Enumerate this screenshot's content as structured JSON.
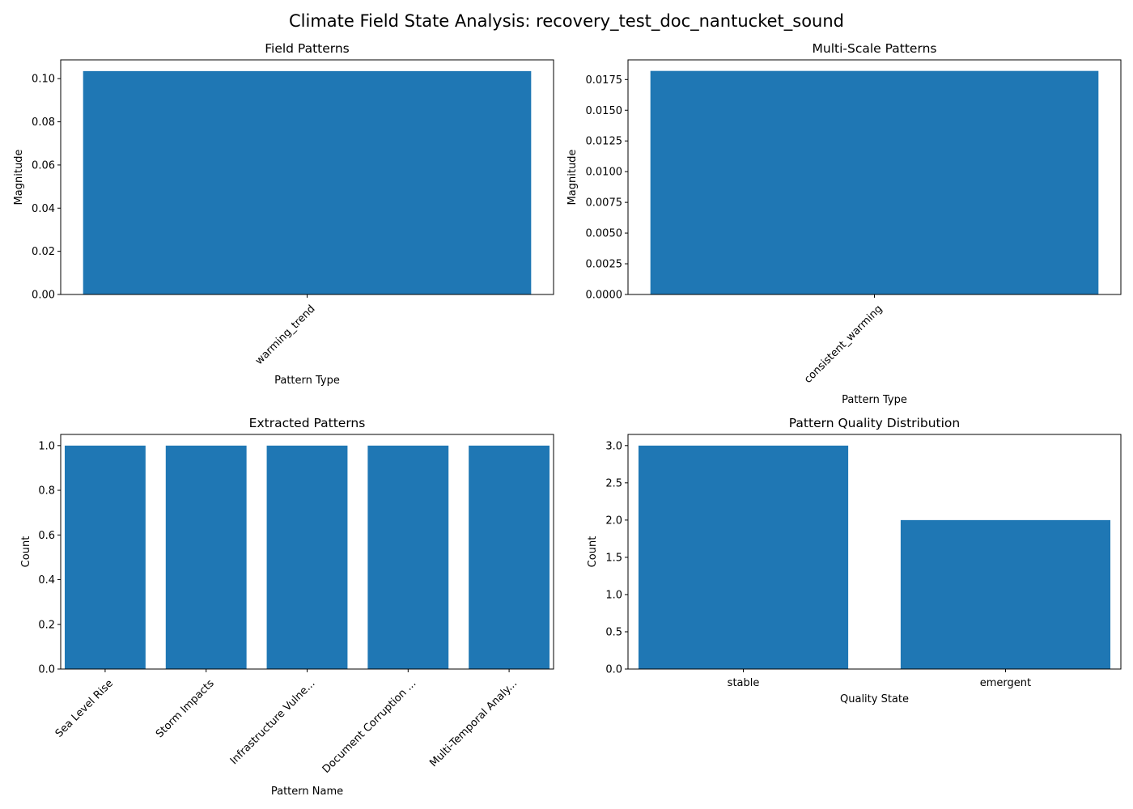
{
  "figure": {
    "title": "Climate Field State Analysis: recovery_test_doc_nantucket_sound",
    "bar_color": "#1f77b4"
  },
  "chart_data": [
    {
      "type": "bar",
      "title": "Field Patterns",
      "xlabel": "Pattern Type",
      "ylabel": "Magnitude",
      "categories": [
        "warming_trend"
      ],
      "values": [
        0.1035
      ],
      "ylim": [
        0,
        0.1087
      ],
      "yticks": [
        0.0,
        0.02,
        0.04,
        0.06,
        0.08,
        0.1
      ],
      "ytick_labels": [
        "0.00",
        "0.02",
        "0.04",
        "0.06",
        "0.08",
        "0.10"
      ],
      "xtick_rotation": 45,
      "grid": false
    },
    {
      "type": "bar",
      "title": "Multi-Scale Patterns",
      "xlabel": "Pattern Type",
      "ylabel": "Magnitude",
      "categories": [
        "consistent_warming"
      ],
      "values": [
        0.0182
      ],
      "ylim": [
        0,
        0.0191
      ],
      "yticks": [
        0.0,
        0.0025,
        0.005,
        0.0075,
        0.01,
        0.0125,
        0.015,
        0.0175
      ],
      "ytick_labels": [
        "0.0000",
        "0.0025",
        "0.0050",
        "0.0075",
        "0.0100",
        "0.0125",
        "0.0150",
        "0.0175"
      ],
      "xtick_rotation": 45,
      "grid": false
    },
    {
      "type": "bar",
      "title": "Extracted Patterns",
      "xlabel": "Pattern Name",
      "ylabel": "Count",
      "categories": [
        "Sea Level Rise",
        "Storm Impacts",
        "Infrastructure Vulne...",
        "Document Corruption ...",
        "Multi-Temporal Analy..."
      ],
      "values": [
        1,
        1,
        1,
        1,
        1
      ],
      "ylim": [
        0,
        1.05
      ],
      "yticks": [
        0.0,
        0.2,
        0.4,
        0.6,
        0.8,
        1.0
      ],
      "ytick_labels": [
        "0.0",
        "0.2",
        "0.4",
        "0.6",
        "0.8",
        "1.0"
      ],
      "xtick_rotation": 45,
      "grid": false
    },
    {
      "type": "bar",
      "title": "Pattern Quality Distribution",
      "xlabel": "Quality State",
      "ylabel": "Count",
      "categories": [
        "stable",
        "emergent"
      ],
      "values": [
        3,
        2
      ],
      "ylim": [
        0,
        3.15
      ],
      "yticks": [
        0.0,
        0.5,
        1.0,
        1.5,
        2.0,
        2.5,
        3.0
      ],
      "ytick_labels": [
        "0.0",
        "0.5",
        "1.0",
        "1.5",
        "2.0",
        "2.5",
        "3.0"
      ],
      "xtick_rotation": 0,
      "grid": false
    }
  ]
}
